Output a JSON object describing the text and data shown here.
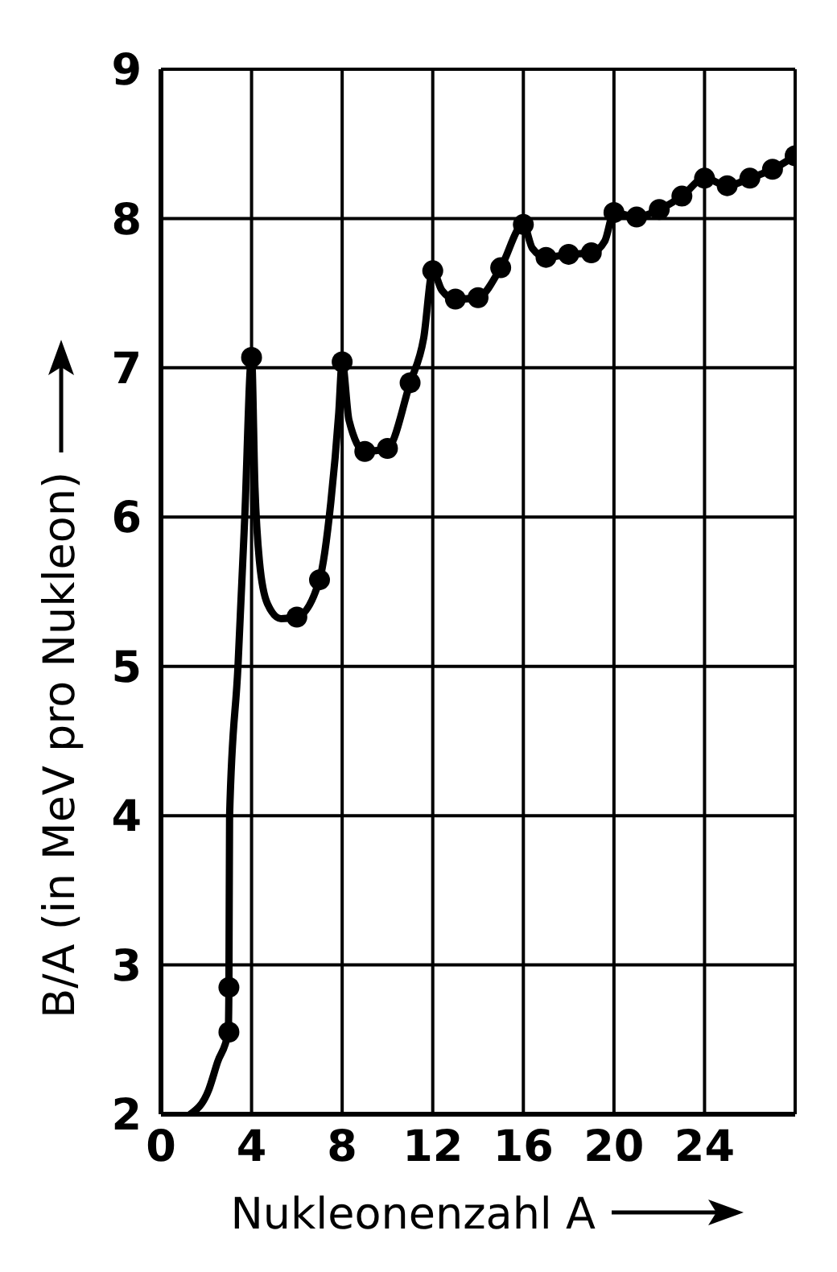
{
  "chart_data": {
    "type": "line",
    "xlabel": "Nukleonenzahl A",
    "ylabel": "B/A (in MeV pro Nukleon)",
    "xlim": [
      0,
      28
    ],
    "xticks": [
      0,
      4,
      8,
      12,
      16,
      20,
      24
    ],
    "ylim": [
      2,
      9
    ],
    "yticks": [
      2,
      3,
      4,
      5,
      6,
      7,
      8,
      9
    ],
    "grid": true,
    "series": [
      {
        "color": "#000000",
        "marker": "none",
        "line_style": "solid",
        "x": [
          1.3,
          2.1,
          2.5,
          2.97,
          3.0,
          3.03,
          3.4,
          3.7,
          4.0,
          4.15,
          4.35,
          4.7,
          5.3,
          6,
          7,
          7.5,
          7.85,
          8,
          8.3,
          9,
          10,
          11,
          11.6,
          12,
          12.4,
          13,
          14,
          15,
          16,
          16.4,
          17,
          18,
          19,
          19.6,
          20,
          21,
          22,
          23,
          24,
          25,
          26,
          27,
          28
        ],
        "values": [
          2.0,
          2.16,
          2.35,
          2.55,
          2.85,
          4.0,
          5.0,
          6.0,
          7.07,
          6.2,
          5.7,
          5.42,
          5.32,
          5.33,
          5.58,
          6.1,
          6.7,
          7.04,
          6.65,
          6.44,
          6.46,
          6.9,
          7.2,
          7.65,
          7.52,
          7.46,
          7.47,
          7.67,
          7.96,
          7.8,
          7.74,
          7.76,
          7.77,
          7.85,
          8.04,
          8.01,
          8.06,
          8.15,
          8.27,
          8.22,
          8.27,
          8.33,
          8.42
        ]
      },
      {
        "type": "scatter",
        "color": "#000000",
        "marker": "circle",
        "x": [
          3,
          3,
          4,
          6,
          7,
          8,
          9,
          10,
          11,
          12,
          13,
          14,
          15,
          16,
          17,
          18,
          19,
          20,
          21,
          22,
          23,
          24,
          25,
          26,
          27,
          28
        ],
        "values": [
          2.55,
          2.85,
          7.07,
          5.33,
          5.58,
          7.04,
          6.44,
          6.46,
          6.9,
          7.65,
          7.46,
          7.47,
          7.67,
          7.96,
          7.74,
          7.76,
          7.77,
          8.04,
          8.01,
          8.06,
          8.15,
          8.27,
          8.22,
          8.27,
          8.33,
          8.42
        ]
      }
    ]
  }
}
